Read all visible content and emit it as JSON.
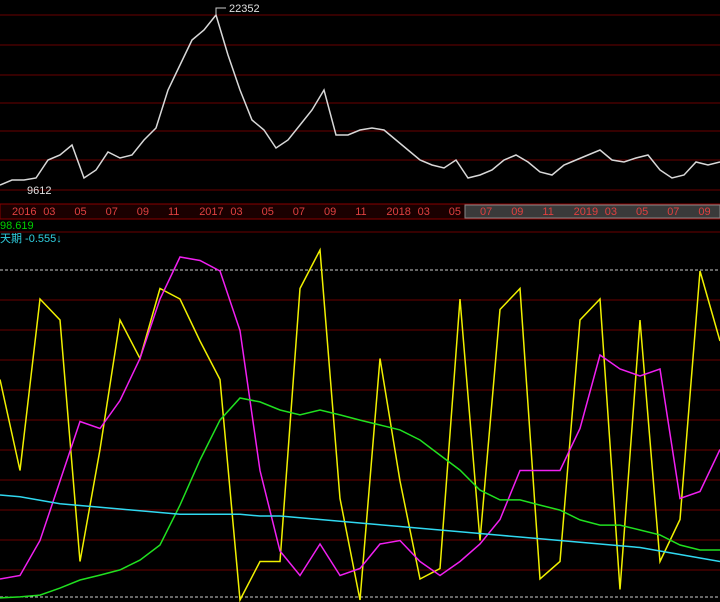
{
  "price_chart": {
    "type": "line",
    "high_label": "22352",
    "low_label": "9612",
    "x_labels": [
      "2016",
      "03",
      "05",
      "07",
      "09",
      "11",
      "2017",
      "03",
      "05",
      "07",
      "09",
      "11",
      "2018",
      "03",
      "05",
      "07",
      "09",
      "11",
      "2019",
      "03",
      "05",
      "07",
      "09"
    ],
    "ylim": [
      8900,
      23100
    ],
    "series": [
      {
        "color": "#d8d8d8",
        "values": [
          9965,
          10320,
          10320,
          10462,
          11740,
          12095,
          12805,
          10462,
          11030,
          12308,
          11882,
          12095,
          13160,
          14012,
          16710,
          18485,
          20260,
          20970,
          22035,
          19195,
          16710,
          14580,
          13870,
          12592,
          13160,
          14225,
          15290,
          16710,
          13515,
          13515,
          13870,
          14012,
          13870,
          13160,
          12450,
          11740,
          11385,
          11172,
          11740,
          10462,
          10675,
          11030,
          11740,
          12095,
          11598,
          10888,
          10675,
          11385,
          11740,
          12095,
          12450,
          11740,
          11598,
          11882,
          12095,
          11030,
          10462,
          10675,
          11598,
          11385,
          11598
        ]
      }
    ]
  },
  "indicator_chart": {
    "type": "line",
    "labels": [
      {
        "text": "98.619",
        "color": "#00d000"
      },
      {
        "text": "天期 -0.555↓",
        "color": "#30d0e0"
      }
    ],
    "ylim": [
      0,
      100
    ],
    "series": [
      {
        "color": "#f0f000",
        "values": [
          63,
          37,
          86,
          80,
          11,
          43,
          80,
          69,
          89,
          86,
          74,
          63,
          0,
          11,
          11,
          89,
          100,
          29,
          0,
          69,
          34,
          6,
          9,
          86,
          17,
          83,
          89,
          6,
          11,
          80,
          86,
          3,
          80,
          11,
          23,
          94,
          74
        ]
      },
      {
        "color": "#f020f0",
        "values": [
          6,
          7,
          17,
          34,
          51,
          49,
          57,
          69,
          86,
          98,
          97,
          94,
          77,
          37,
          14,
          7,
          16,
          7,
          9,
          16,
          17,
          11,
          7,
          11,
          16,
          23,
          37,
          37,
          37,
          49,
          70,
          66,
          64,
          66,
          29,
          31,
          43
        ]
      },
      {
        "color": "#20e020",
        "values": [
          0.6,
          0.9,
          1.4,
          3.4,
          5.7,
          7.1,
          8.6,
          11.4,
          15.7,
          27.1,
          40,
          51.4,
          57.7,
          56.6,
          54.3,
          52.9,
          54.3,
          52.9,
          51.4,
          50,
          48.6,
          45.7,
          41.4,
          37.1,
          31.4,
          28.6,
          28.6,
          27.1,
          25.7,
          22.9,
          21.4,
          21.4,
          20,
          18.6,
          15.7,
          14.3,
          14.3
        ]
      },
      {
        "color": "#30d8f0",
        "values": [
          30,
          29.5,
          28.5,
          27.5,
          27,
          26.5,
          26,
          25.5,
          25,
          24.5,
          24.5,
          24.5,
          24.5,
          24,
          24,
          23.5,
          23,
          22.5,
          22,
          21.5,
          21,
          20.5,
          20,
          19.5,
          19,
          18.5,
          18,
          17.5,
          17,
          16.5,
          16,
          15.5,
          15,
          14,
          13,
          12,
          11
        ]
      }
    ]
  }
}
